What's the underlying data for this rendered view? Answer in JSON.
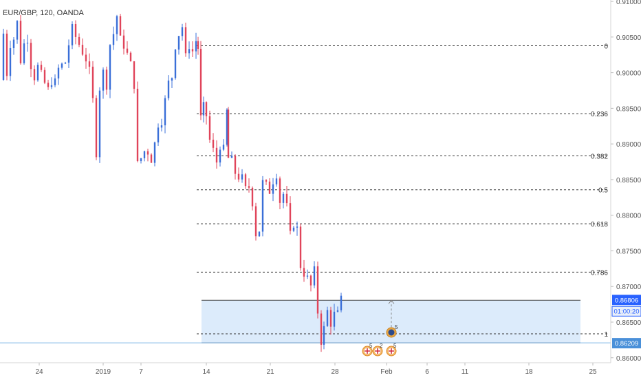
{
  "header": {
    "symbol_label": "EUR/GBP, 120, OANDA"
  },
  "chart_data": {
    "type": "candlestick",
    "symbol": "EUR/GBP",
    "interval": "120",
    "source": "OANDA",
    "colors": {
      "up": "#3a6fd8",
      "down": "#e0445a",
      "fib_line": "#333333",
      "box_fill": "#dcebfb",
      "box_border": "#444444",
      "price_badge": "#2962ff",
      "level_badge": "#4a90d9"
    },
    "y_axis": {
      "range": [
        0.8593,
        0.9102
      ],
      "tick_values": [
        0.91,
        0.905,
        0.9,
        0.895,
        0.89,
        0.885,
        0.88,
        0.875,
        0.87,
        0.865,
        0.86
      ],
      "tick_labels": [
        "0.91000",
        "0.90500",
        "0.90000",
        "0.89500",
        "0.89000",
        "0.88500",
        "0.88000",
        "0.87500",
        "0.87000",
        "0.86500",
        "0.86000"
      ]
    },
    "x_axis": {
      "labels": [
        "24",
        "2019",
        "7",
        "14",
        "21",
        "28",
        "Feb",
        "6",
        "11",
        "18",
        "25"
      ]
    },
    "fib_levels": [
      {
        "label": "0",
        "value": 0.90378
      },
      {
        "label": "0.236",
        "value": 0.89424
      },
      {
        "label": "0.382",
        "value": 0.88834
      },
      {
        "label": "0.5",
        "value": 0.88357
      },
      {
        "label": "0.618",
        "value": 0.8788
      },
      {
        "label": "0.786",
        "value": 0.87201
      },
      {
        "label": "1",
        "value": 0.86336
      }
    ],
    "range_box": {
      "top": 0.86806,
      "bottom": 0.86209
    },
    "last_price": {
      "value": "0.86806",
      "countdown": "01:00:20"
    },
    "level_marker": {
      "value": "0.86209"
    },
    "event_markers": [
      {
        "count": "5"
      },
      {
        "count": "2"
      },
      {
        "count": "5"
      }
    ],
    "ohlc_path": [
      [
        0,
        0.899
      ],
      [
        5,
        0.9055
      ],
      [
        10,
        0.9
      ],
      [
        15,
        0.9042
      ],
      [
        20,
        0.9048
      ],
      [
        25,
        0.907
      ],
      [
        30,
        0.9018
      ],
      [
        35,
        0.904
      ],
      [
        40,
        0.905
      ],
      [
        45,
        0.9012
      ],
      [
        50,
        0.8995
      ],
      [
        55,
        0.9008
      ],
      [
        60,
        0.8995
      ],
      [
        65,
        0.8985
      ],
      [
        70,
        0.8975
      ],
      [
        75,
        0.899
      ],
      [
        80,
        0.8985
      ],
      [
        85,
        0.9005
      ],
      [
        90,
        0.901
      ],
      [
        95,
        0.9015
      ],
      [
        100,
        0.904
      ],
      [
        105,
        0.906
      ],
      [
        110,
        0.905
      ],
      [
        115,
        0.904
      ],
      [
        120,
        0.903
      ],
      [
        125,
        0.902
      ],
      [
        130,
        0.9
      ],
      [
        135,
        0.896
      ],
      [
        140,
        0.889
      ],
      [
        145,
        0.898
      ],
      [
        150,
        0.9
      ],
      [
        155,
        0.8985
      ],
      [
        160,
        0.904
      ],
      [
        165,
        0.9055
      ],
      [
        170,
        0.908
      ],
      [
        175,
        0.9045
      ],
      [
        180,
        0.904
      ],
      [
        185,
        0.9025
      ],
      [
        190,
        0.901
      ],
      [
        195,
        0.8985
      ],
      [
        200,
        0.887
      ],
      [
        205,
        0.888
      ],
      [
        210,
        0.889
      ],
      [
        215,
        0.889
      ],
      [
        220,
        0.888
      ],
      [
        225,
        0.89
      ],
      [
        230,
        0.893
      ],
      [
        235,
        0.8935
      ],
      [
        240,
        0.896
      ],
      [
        245,
        0.8985
      ],
      [
        250,
        0.8995
      ],
      [
        255,
        0.904
      ],
      [
        260,
        0.9055
      ],
      [
        265,
        0.9065
      ],
      [
        270,
        0.902
      ],
      [
        275,
        0.904
      ],
      [
        280,
        0.903
      ],
      [
        285,
        0.9045
      ],
      [
        288,
        0.9035
      ],
      [
        292,
        0.8935
      ],
      [
        296,
        0.895
      ],
      [
        300,
        0.894
      ],
      [
        305,
        0.8905
      ],
      [
        310,
        0.889
      ],
      [
        315,
        0.8875
      ],
      [
        320,
        0.89
      ],
      [
        325,
        0.889
      ],
      [
        330,
        0.8945
      ],
      [
        332,
        0.888
      ],
      [
        337,
        0.8875
      ],
      [
        342,
        0.886
      ],
      [
        347,
        0.8855
      ],
      [
        352,
        0.885
      ],
      [
        357,
        0.8835
      ],
      [
        362,
        0.884
      ],
      [
        367,
        0.882
      ],
      [
        372,
        0.8775
      ],
      [
        377,
        0.878
      ],
      [
        382,
        0.8845
      ],
      [
        387,
        0.884
      ],
      [
        392,
        0.8835
      ],
      [
        397,
        0.885
      ],
      [
        402,
        0.886
      ],
      [
        407,
        0.882
      ],
      [
        412,
        0.883
      ],
      [
        417,
        0.881
      ],
      [
        422,
        0.877
      ],
      [
        427,
        0.879
      ],
      [
        432,
        0.878
      ],
      [
        437,
        0.873
      ],
      [
        442,
        0.872
      ],
      [
        447,
        0.871
      ],
      [
        452,
        0.87
      ],
      [
        457,
        0.872
      ],
      [
        462,
        0.8665
      ],
      [
        467,
        0.8625
      ],
      [
        471,
        0.864
      ],
      [
        476,
        0.8665
      ],
      [
        481,
        0.865
      ],
      [
        486,
        0.866
      ],
      [
        491,
        0.866
      ],
      [
        496,
        0.868
      ]
    ]
  }
}
